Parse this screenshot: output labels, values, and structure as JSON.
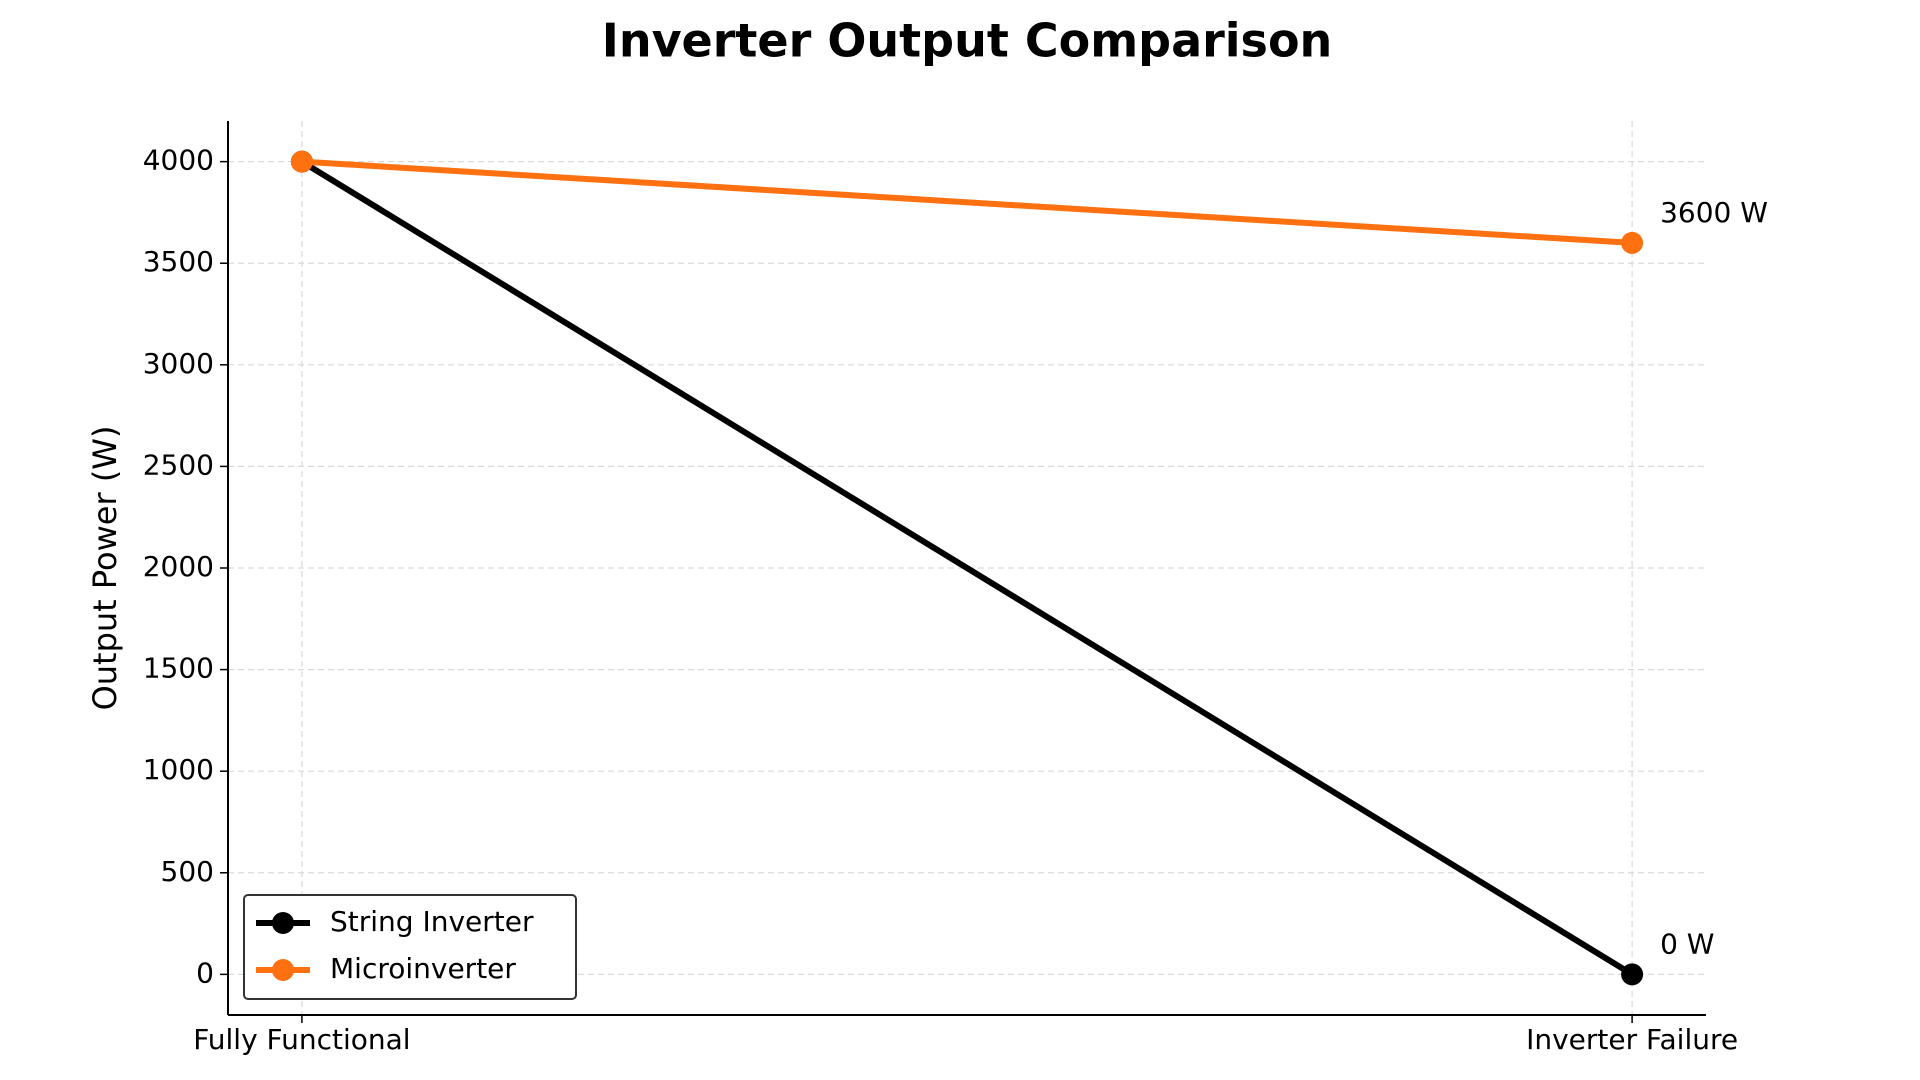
{
  "chart_data": {
    "type": "line",
    "title": "Inverter Output Comparison",
    "y_label": "Output Power (W)",
    "categories": [
      "Fully Functional",
      "Inverter Failure"
    ],
    "series": [
      {
        "name": "String Inverter",
        "color": "#000000",
        "values": [
          4000,
          0
        ],
        "value_labels": [
          null,
          "0 W"
        ]
      },
      {
        "name": "Microinverter",
        "color": "#ff7010",
        "values": [
          4000,
          3600
        ],
        "value_labels": [
          null,
          "3600 W"
        ]
      }
    ],
    "ylim": [
      -200,
      4200
    ],
    "yticks": [
      0,
      500,
      1000,
      1500,
      2000,
      2500,
      3000,
      3500,
      4000
    ],
    "grid": true,
    "legend": "lower left"
  }
}
